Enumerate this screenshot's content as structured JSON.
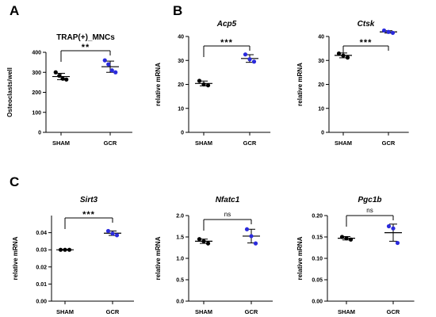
{
  "panel_letters": [
    "A",
    "B",
    "C"
  ],
  "colors": {
    "sham": "#000000",
    "gcr": "#2b2bdc",
    "axis": "#000000"
  },
  "chart_data": [
    {
      "type": "scatter",
      "panel": "A",
      "title": "TRAP(+)_MNCs",
      "title_italic": false,
      "ylabel": "Osteoclasts/well",
      "xlabel": "",
      "categories": [
        "SHAM",
        "GCR"
      ],
      "ylim": [
        0,
        400
      ],
      "yticks": [
        "0",
        "100",
        "200",
        "300",
        "400"
      ],
      "ytick_values": [
        0,
        100,
        200,
        300,
        400
      ],
      "series": [
        {
          "category": "SHAM",
          "points": [
            300,
            283,
            268,
            264
          ],
          "mean": 279,
          "sd": 16
        },
        {
          "category": "GCR",
          "points": [
            360,
            340,
            310,
            300
          ],
          "mean": 328,
          "sd": 28
        }
      ],
      "significance": "**"
    },
    {
      "type": "scatter",
      "panel": "B",
      "title": "Acp5",
      "title_italic": true,
      "ylabel": "relative mRNA",
      "xlabel": "",
      "categories": [
        "SHAM",
        "GCR"
      ],
      "ylim": [
        0,
        40
      ],
      "yticks": [
        "0",
        "10",
        "20",
        "30",
        "40"
      ],
      "ytick_values": [
        0,
        10,
        20,
        30,
        40
      ],
      "series": [
        {
          "category": "SHAM",
          "points": [
            21.5,
            20.0,
            19.6
          ],
          "mean": 20.4,
          "sd": 1.0
        },
        {
          "category": "GCR",
          "points": [
            32.5,
            30.5,
            29.5
          ],
          "mean": 30.8,
          "sd": 1.6
        }
      ],
      "significance": "***"
    },
    {
      "type": "scatter",
      "panel": "B",
      "title": "Ctsk",
      "title_italic": true,
      "ylabel": "relative mRNA",
      "xlabel": "",
      "categories": [
        "SHAM",
        "GCR"
      ],
      "ylim": [
        0,
        40
      ],
      "yticks": [
        "0",
        "10",
        "20",
        "30",
        "40"
      ],
      "ytick_values": [
        0,
        10,
        20,
        30,
        40
      ],
      "series": [
        {
          "category": "SHAM",
          "points": [
            32.9,
            32.0,
            31.2
          ],
          "mean": 32.1,
          "sd": 1.0
        },
        {
          "category": "GCR",
          "points": [
            42.5,
            41.9,
            41.5
          ],
          "mean": 41.9,
          "sd": 0.5
        }
      ],
      "significance": "***"
    },
    {
      "type": "scatter",
      "panel": "C",
      "title": "Sirt3",
      "title_italic": true,
      "ylabel": "relative mRNA",
      "xlabel": "",
      "categories": [
        "SHAM",
        "GCR"
      ],
      "ylim": [
        0,
        0.05
      ],
      "yticks": [
        "0.00",
        "0.01",
        "0.02",
        "0.03",
        "0.04"
      ],
      "ytick_values": [
        0,
        0.01,
        0.02,
        0.03,
        0.04
      ],
      "series": [
        {
          "category": "SHAM",
          "points": [
            0.03,
            0.03,
            0.03
          ],
          "mean": 0.03,
          "sd": 0.0002
        },
        {
          "category": "GCR",
          "points": [
            0.041,
            0.0395,
            0.0385
          ],
          "mean": 0.0397,
          "sd": 0.0013
        }
      ],
      "significance": "***"
    },
    {
      "type": "scatter",
      "panel": "C",
      "title": "Nfatc1",
      "title_italic": true,
      "ylabel": "relative mRNA",
      "xlabel": "",
      "categories": [
        "SHAM",
        "GCR"
      ],
      "ylim": [
        0,
        2.0
      ],
      "yticks": [
        "0.0",
        "0.5",
        "1.0",
        "1.5",
        "2.0"
      ],
      "ytick_values": [
        0,
        0.5,
        1.0,
        1.5,
        2.0
      ],
      "series": [
        {
          "category": "SHAM",
          "points": [
            1.45,
            1.4,
            1.35
          ],
          "mean": 1.4,
          "sd": 0.05
        },
        {
          "category": "GCR",
          "points": [
            1.68,
            1.52,
            1.35
          ],
          "mean": 1.52,
          "sd": 0.16
        }
      ],
      "significance": "ns"
    },
    {
      "type": "scatter",
      "panel": "C",
      "title": "Pgc1b",
      "title_italic": true,
      "ylabel": "relative mRNA",
      "xlabel": "",
      "categories": [
        "SHAM",
        "GCR"
      ],
      "ylim": [
        0,
        0.2
      ],
      "yticks": [
        "0.00",
        "0.05",
        "0.10",
        "0.15",
        "0.20"
      ],
      "ytick_values": [
        0,
        0.05,
        0.1,
        0.15,
        0.2
      ],
      "series": [
        {
          "category": "SHAM",
          "points": [
            0.15,
            0.147,
            0.144
          ],
          "mean": 0.147,
          "sd": 0.004
        },
        {
          "category": "GCR",
          "points": [
            0.175,
            0.17,
            0.136
          ],
          "mean": 0.16,
          "sd": 0.02
        }
      ],
      "significance": "ns"
    }
  ]
}
